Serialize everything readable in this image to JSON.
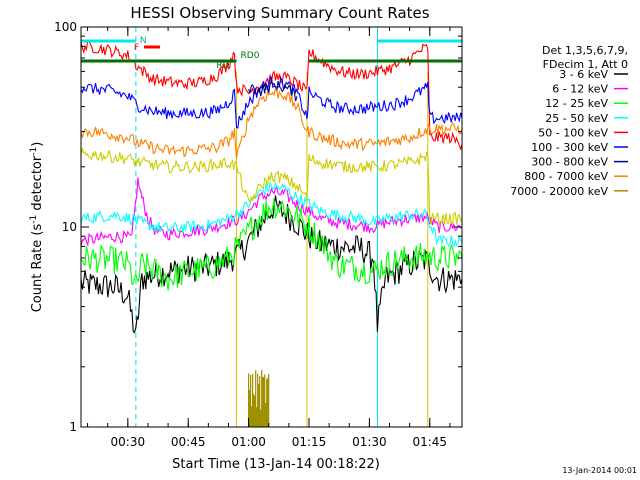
{
  "chart_data": {
    "type": "line",
    "title": "HESSI Observing Summary Count Rates",
    "xlabel": "Start Time (13-Jan-14 00:18:22)",
    "ylabel_main": "Count Rate (s",
    "ylabel_sup1": "-1",
    "ylabel_mid": " detector",
    "ylabel_sup2": "-1",
    "ylabel_end": ")",
    "yscale": "log",
    "ylim": [
      1,
      100
    ],
    "xlim_minutes": [
      18.37,
      113
    ],
    "x_ticks": [
      {
        "label": "00:30",
        "minute": 30
      },
      {
        "label": "00:45",
        "minute": 45
      },
      {
        "label": "01:00",
        "minute": 60
      },
      {
        "label": "01:15",
        "minute": 75
      },
      {
        "label": "01:30",
        "minute": 90
      },
      {
        "label": "01:45",
        "minute": 105
      }
    ],
    "y_ticks": [
      {
        "label": "1",
        "value": 1
      },
      {
        "label": "10",
        "value": 10
      },
      {
        "label": "100",
        "value": 100
      }
    ],
    "legend_header": [
      "Det 1,3,5,6,7,9,",
      "FDecim 1, Att 0"
    ],
    "series": [
      {
        "name": "3 - 6 keV",
        "color": "#000000",
        "points": [
          [
            18.4,
            5.2
          ],
          [
            27,
            5.0
          ],
          [
            30,
            4.5
          ],
          [
            32,
            2.8
          ],
          [
            33.5,
            5.5
          ],
          [
            37,
            5.8
          ],
          [
            40,
            6.0
          ],
          [
            45,
            6.2
          ],
          [
            50,
            6.3
          ],
          [
            55,
            6.8
          ],
          [
            58,
            7.5
          ],
          [
            60,
            8.5
          ],
          [
            63,
            10.5
          ],
          [
            66,
            12.5
          ],
          [
            69,
            11.8
          ],
          [
            72,
            10.5
          ],
          [
            75,
            9.0
          ],
          [
            78,
            8.2
          ],
          [
            82,
            8.0
          ],
          [
            88,
            7.8
          ],
          [
            91,
            7.0
          ],
          [
            92,
            3.2
          ],
          [
            94,
            5.5
          ],
          [
            97,
            6.0
          ],
          [
            100,
            6.5
          ],
          [
            104,
            6.8
          ],
          [
            107,
            5.5
          ],
          [
            113,
            5.5
          ]
        ]
      },
      {
        "name": "6 - 12 keV",
        "color": "#ff00ff",
        "points": [
          [
            18.4,
            8.5
          ],
          [
            27,
            9.0
          ],
          [
            31,
            8.8
          ],
          [
            32.5,
            17
          ],
          [
            33.5,
            14
          ],
          [
            35,
            11
          ],
          [
            37,
            9.5
          ],
          [
            40,
            9.2
          ],
          [
            45,
            9.5
          ],
          [
            50,
            9.8
          ],
          [
            55,
            10.5
          ],
          [
            58,
            11
          ],
          [
            60,
            12
          ],
          [
            63,
            14
          ],
          [
            66,
            15
          ],
          [
            69,
            14.5
          ],
          [
            72,
            13
          ],
          [
            75,
            12
          ],
          [
            78,
            11
          ],
          [
            82,
            10.5
          ],
          [
            88,
            10.2
          ],
          [
            91,
            10
          ],
          [
            94,
            10.5
          ],
          [
            97,
            10.8
          ],
          [
            100,
            11
          ],
          [
            104,
            11.2
          ],
          [
            107,
            10
          ],
          [
            113,
            10
          ]
        ]
      },
      {
        "name": "12 - 25 keV",
        "color": "#00ff00",
        "points": [
          [
            18.4,
            7.0
          ],
          [
            27,
            6.8
          ],
          [
            30,
            6.5
          ],
          [
            32,
            5.0
          ],
          [
            33.5,
            6.5
          ],
          [
            37,
            6.0
          ],
          [
            40,
            5.5
          ],
          [
            45,
            6.0
          ],
          [
            50,
            6.2
          ],
          [
            55,
            7.0
          ],
          [
            58,
            8.2
          ],
          [
            60,
            9.5
          ],
          [
            63,
            11.5
          ],
          [
            66,
            13.0
          ],
          [
            69,
            12.5
          ],
          [
            72,
            11.2
          ],
          [
            75,
            10.0
          ],
          [
            78,
            8.5
          ],
          [
            82,
            6.5
          ],
          [
            88,
            6.2
          ],
          [
            91,
            6.0
          ],
          [
            94,
            6.5
          ],
          [
            97,
            6.8
          ],
          [
            100,
            7.0
          ],
          [
            104,
            7.2
          ],
          [
            107,
            7.0
          ],
          [
            113,
            7.0
          ]
        ]
      },
      {
        "name": "25 - 50 keV",
        "color": "#00ffff",
        "points": [
          [
            18.4,
            11
          ],
          [
            27,
            11.5
          ],
          [
            31,
            11
          ],
          [
            33.5,
            10.5
          ],
          [
            37,
            10
          ],
          [
            40,
            9.8
          ],
          [
            45,
            10
          ],
          [
            50,
            10.2
          ],
          [
            55,
            11
          ],
          [
            58,
            12
          ],
          [
            60,
            13
          ],
          [
            63,
            15
          ],
          [
            66,
            16
          ],
          [
            69,
            15.5
          ],
          [
            72,
            14
          ],
          [
            75,
            13
          ],
          [
            78,
            12
          ],
          [
            82,
            11.5
          ],
          [
            88,
            11
          ],
          [
            91,
            10.5
          ],
          [
            94,
            11
          ],
          [
            97,
            11.2
          ],
          [
            100,
            11.5
          ],
          [
            104,
            11.5
          ],
          [
            107,
            8.5
          ],
          [
            113,
            8.5
          ]
        ]
      },
      {
        "name": "50 - 100 keV",
        "color": "#ff0000",
        "points": [
          [
            18.4,
            80
          ],
          [
            22,
            79
          ],
          [
            26,
            76
          ],
          [
            30,
            72
          ],
          [
            33,
            62
          ],
          [
            36,
            55
          ],
          [
            40,
            53
          ],
          [
            44,
            52
          ],
          [
            48,
            53
          ],
          [
            52,
            57
          ],
          [
            55,
            65
          ],
          [
            56.5,
            75
          ],
          [
            57,
            50
          ],
          [
            60,
            47
          ],
          [
            63,
            52
          ],
          [
            66,
            56
          ],
          [
            69,
            56
          ],
          [
            72,
            52
          ],
          [
            74.5,
            47
          ],
          [
            75,
            75
          ],
          [
            78,
            68
          ],
          [
            81,
            62
          ],
          [
            84,
            59
          ],
          [
            88,
            58
          ],
          [
            92,
            60
          ],
          [
            96,
            63
          ],
          [
            100,
            69
          ],
          [
            103,
            77
          ],
          [
            104.5,
            79
          ],
          [
            105,
            28
          ],
          [
            110,
            28
          ],
          [
            113,
            26
          ]
        ]
      },
      {
        "name": "100 - 300 keV",
        "color": "#0000ff",
        "points": [
          [
            18.4,
            50
          ],
          [
            22,
            49
          ],
          [
            26,
            48
          ],
          [
            30,
            45
          ],
          [
            33,
            40
          ],
          [
            36,
            38
          ],
          [
            40,
            37
          ],
          [
            44,
            37
          ],
          [
            48,
            37
          ],
          [
            52,
            38
          ],
          [
            55,
            42
          ],
          [
            56.5,
            47
          ],
          [
            57,
            32
          ],
          [
            60,
            42
          ],
          [
            63,
            50
          ],
          [
            66,
            53
          ],
          [
            69,
            52
          ],
          [
            72,
            47
          ],
          [
            74.5,
            35
          ],
          [
            75,
            47
          ],
          [
            78,
            43
          ],
          [
            81,
            40
          ],
          [
            84,
            39
          ],
          [
            88,
            39
          ],
          [
            92,
            40
          ],
          [
            96,
            41
          ],
          [
            100,
            44
          ],
          [
            103,
            48
          ],
          [
            104.5,
            50
          ],
          [
            105,
            35
          ],
          [
            110,
            35
          ],
          [
            113,
            35
          ]
        ]
      },
      {
        "name": "300 - 800 keV",
        "color": "#000080",
        "points": [
          [
            60,
            50
          ],
          [
            63,
            48
          ],
          [
            66,
            51
          ],
          [
            69,
            50
          ],
          [
            72,
            45
          ]
        ]
      },
      {
        "name": "800 - 7000 keV",
        "color": "#ff8000",
        "points": [
          [
            18.4,
            30
          ],
          [
            22,
            30
          ],
          [
            26,
            29
          ],
          [
            30,
            28
          ],
          [
            33,
            26
          ],
          [
            36,
            25
          ],
          [
            40,
            24
          ],
          [
            44,
            24
          ],
          [
            48,
            24.5
          ],
          [
            52,
            25
          ],
          [
            55,
            27
          ],
          [
            56.5,
            30
          ],
          [
            57,
            22
          ],
          [
            60,
            35
          ],
          [
            63,
            44
          ],
          [
            66,
            47
          ],
          [
            69,
            46
          ],
          [
            72,
            40
          ],
          [
            74.5,
            30
          ],
          [
            75,
            30
          ],
          [
            78,
            28
          ],
          [
            81,
            27
          ],
          [
            84,
            26
          ],
          [
            88,
            26
          ],
          [
            92,
            26
          ],
          [
            96,
            27
          ],
          [
            100,
            28
          ],
          [
            103,
            30
          ],
          [
            104.5,
            31
          ],
          [
            105,
            31
          ],
          [
            110,
            31
          ],
          [
            113,
            31
          ]
        ]
      },
      {
        "name": "7000 - 20000 keV",
        "color": "#a09000",
        "points": [
          [
            60,
            1.4
          ],
          [
            60.5,
            1.9
          ],
          [
            61,
            1.2
          ],
          [
            61.5,
            1.8
          ],
          [
            62,
            1.0
          ],
          [
            62.5,
            1.9
          ],
          [
            63,
            1.3
          ],
          [
            63.5,
            1.9
          ],
          [
            64,
            1.1
          ],
          [
            64.5,
            1.7
          ],
          [
            65,
            1.0
          ]
        ]
      },
      {
        "name": "",
        "color": "#cccc00",
        "points": [
          [
            18.4,
            23
          ],
          [
            22,
            23
          ],
          [
            26,
            22.5
          ],
          [
            30,
            22
          ],
          [
            33,
            21
          ],
          [
            36,
            20.5
          ],
          [
            40,
            20
          ],
          [
            44,
            20
          ],
          [
            48,
            20
          ],
          [
            52,
            20.5
          ],
          [
            55,
            21
          ],
          [
            57,
            20
          ],
          [
            60,
            13
          ],
          [
            63,
            16
          ],
          [
            66,
            18
          ],
          [
            69,
            17.5
          ],
          [
            72,
            16
          ],
          [
            74.5,
            14
          ],
          [
            75,
            22
          ],
          [
            78,
            21
          ],
          [
            81,
            20.5
          ],
          [
            84,
            20
          ],
          [
            88,
            20
          ],
          [
            92,
            20
          ],
          [
            96,
            20.5
          ],
          [
            100,
            21
          ],
          [
            103,
            22
          ],
          [
            104.5,
            23
          ],
          [
            105,
            11
          ],
          [
            110,
            11
          ],
          [
            113,
            11
          ]
        ]
      }
    ],
    "annotations": {
      "night_bar_label": "N",
      "flare_bar_label": "F",
      "rd_labels": [
        "RD",
        "RD0"
      ],
      "n_segments": [
        [
          18.4,
          32
        ],
        [
          92,
          113
        ]
      ],
      "f_segment": [
        34,
        38
      ],
      "rd_segments": [
        [
          18.4,
          57
        ],
        [
          75,
          113
        ]
      ]
    },
    "vertical_markers": {
      "cyan_solid": [
        92
      ],
      "cyan_dashed": [
        32,
        113
      ],
      "yellow_solid": [
        57,
        74.5,
        104.5
      ]
    }
  },
  "footer_stamp": "13-Jan-2014 00:01"
}
